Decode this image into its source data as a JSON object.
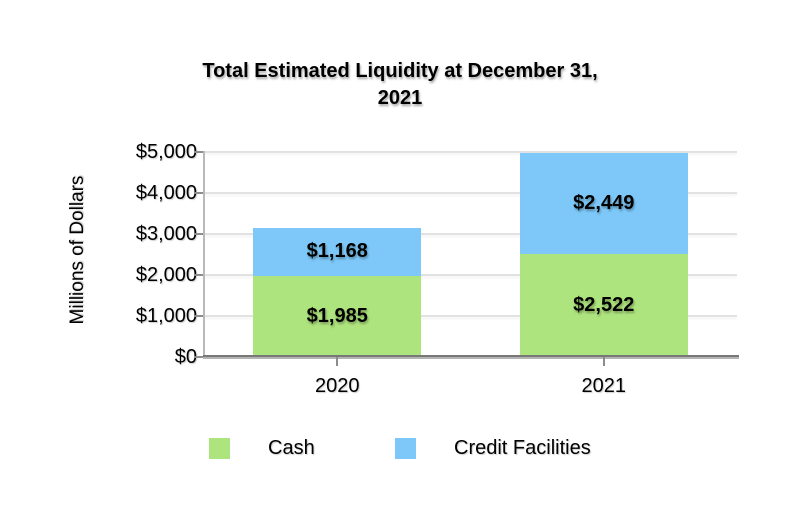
{
  "title": {
    "line1": "Total Estimated Liquidity at December 31,",
    "line2": "2021"
  },
  "chart_data": {
    "type": "bar",
    "stacked": true,
    "title": "Total Estimated Liquidity at December 31, 2021",
    "categories": [
      "2020",
      "2021"
    ],
    "series": [
      {
        "name": "Cash",
        "color": "#AEE47E",
        "values": [
          1985,
          2522
        ],
        "data_labels": [
          "$1,985",
          "$2,522"
        ]
      },
      {
        "name": "Credit Facilities",
        "color": "#7DC8F8",
        "values": [
          1168,
          2449
        ],
        "data_labels": [
          "$1,168",
          "$2,449"
        ]
      }
    ],
    "ylabel": "Millions of Dollars",
    "xlabel": "",
    "ylim": [
      0,
      5000
    ],
    "yticks": [
      {
        "value": 0,
        "label": "$0"
      },
      {
        "value": 1000,
        "label": "$1,000"
      },
      {
        "value": 2000,
        "label": "$2,000"
      },
      {
        "value": 3000,
        "label": "$3,000"
      },
      {
        "value": 4000,
        "label": "$4,000"
      },
      {
        "value": 5000,
        "label": "$5,000"
      }
    ],
    "grid": true,
    "legend": {
      "position": "bottom",
      "entries": [
        "Cash",
        "Credit Facilities"
      ]
    }
  },
  "colors": {
    "cash": "#AEE47E",
    "credit_facilities": "#7DC8F8",
    "gridline": "#E2E2E2",
    "axis_dark": "#787878",
    "axis_light": "#B9B9B9",
    "tick": "#8C8C8C",
    "text": "#000000"
  }
}
